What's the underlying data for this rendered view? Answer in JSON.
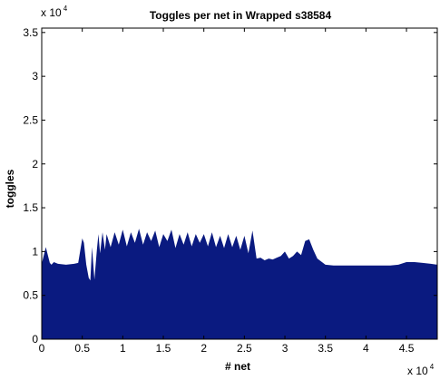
{
  "chart_data": {
    "type": "area",
    "title": "Toggles per net in Wrapped s38584",
    "xlabel": "# net",
    "ylabel": "toggles",
    "x_multiplier_base": "x 10",
    "x_multiplier_exp": "4",
    "y_multiplier_base": "x 10",
    "y_multiplier_exp": "4",
    "xlim": [
      0,
      4.88
    ],
    "ylim": [
      0,
      3.55
    ],
    "x_ticks": [
      0,
      0.5,
      1,
      1.5,
      2,
      2.5,
      3,
      3.5,
      4,
      4.5
    ],
    "x_tick_labels": [
      "0",
      "0.5",
      "1",
      "1.5",
      "2",
      "2.5",
      "3",
      "3.5",
      "4",
      "4.5"
    ],
    "y_ticks": [
      0,
      0.5,
      1,
      1.5,
      2,
      2.5,
      3,
      3.5
    ],
    "y_tick_labels": [
      "0",
      "0.5",
      "1",
      "1.5",
      "2",
      "2.5",
      "3",
      "3.5"
    ],
    "grid": false,
    "fill_color": "#0a1a80",
    "series": [
      {
        "x": [
          0,
          0.05,
          0.1,
          0.12,
          0.15,
          0.2,
          0.3,
          0.4,
          0.45,
          0.5,
          0.52,
          0.55,
          0.58,
          0.6,
          0.62,
          0.65,
          0.68,
          0.7,
          0.72,
          0.75,
          0.78,
          0.8,
          0.85,
          0.9,
          0.95,
          1.0,
          1.05,
          1.1,
          1.15,
          1.2,
          1.25,
          1.3,
          1.35,
          1.4,
          1.45,
          1.5,
          1.55,
          1.6,
          1.65,
          1.7,
          1.75,
          1.8,
          1.85,
          1.9,
          1.95,
          2.0,
          2.05,
          2.1,
          2.15,
          2.2,
          2.25,
          2.3,
          2.35,
          2.4,
          2.45,
          2.5,
          2.55,
          2.6,
          2.65,
          2.7,
          2.75,
          2.8,
          2.85,
          2.9,
          2.95,
          3.0,
          3.05,
          3.1,
          3.15,
          3.2,
          3.25,
          3.3,
          3.35,
          3.4,
          3.5,
          3.6,
          3.8,
          4.0,
          4.2,
          4.3,
          4.4,
          4.5,
          4.6,
          4.7,
          4.8,
          4.88
        ],
        "y": [
          0.86,
          1.05,
          0.87,
          0.85,
          0.88,
          0.86,
          0.85,
          0.86,
          0.87,
          1.15,
          1.1,
          0.85,
          0.7,
          0.67,
          1.05,
          0.68,
          1.02,
          1.2,
          0.98,
          1.22,
          1.02,
          1.2,
          1.05,
          1.22,
          1.08,
          1.25,
          1.06,
          1.22,
          1.1,
          1.26,
          1.08,
          1.22,
          1.12,
          1.24,
          1.05,
          1.2,
          1.12,
          1.25,
          1.04,
          1.2,
          1.08,
          1.22,
          1.06,
          1.2,
          1.1,
          1.2,
          1.06,
          1.22,
          1.05,
          1.18,
          1.04,
          1.2,
          1.05,
          1.18,
          1.02,
          1.18,
          0.98,
          1.24,
          0.92,
          0.93,
          0.9,
          0.92,
          0.91,
          0.93,
          0.95,
          1.0,
          0.92,
          0.95,
          1.0,
          0.96,
          1.12,
          1.14,
          1.02,
          0.92,
          0.85,
          0.84,
          0.84,
          0.84,
          0.84,
          0.84,
          0.85,
          0.88,
          0.88,
          0.87,
          0.86,
          0.85
        ]
      }
    ]
  }
}
